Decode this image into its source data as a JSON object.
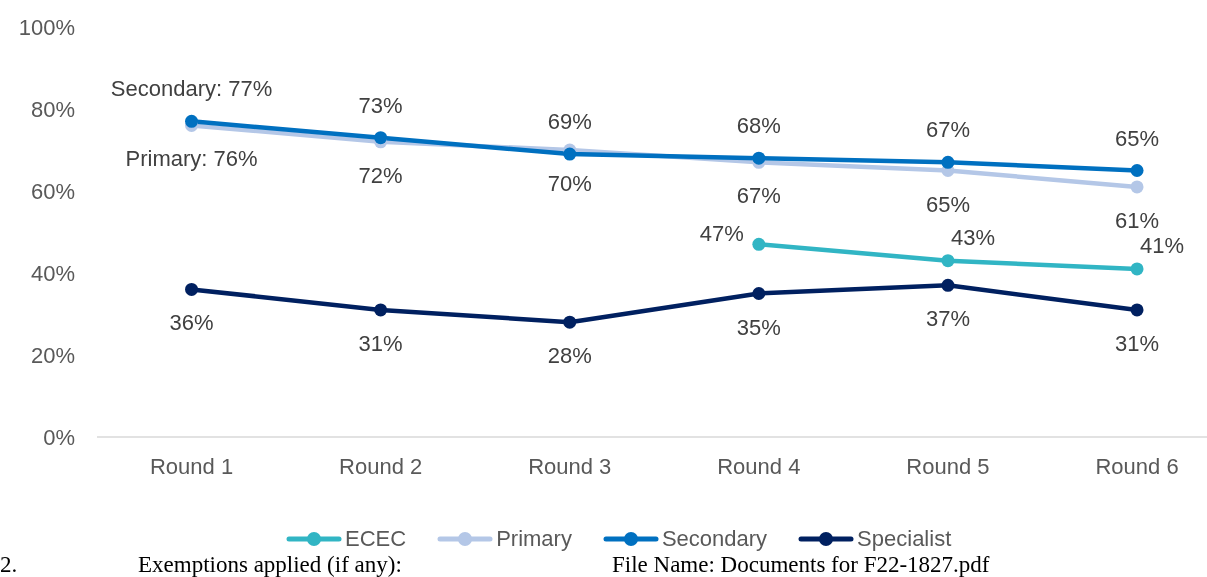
{
  "chart_data": {
    "type": "line",
    "categories": [
      "Round 1",
      "Round 2",
      "Round 3",
      "Round 4",
      "Round 5",
      "Round 6"
    ],
    "series": [
      {
        "name": "ECEC",
        "color": "#31b5c4",
        "values": [
          null,
          null,
          null,
          47,
          43,
          41
        ],
        "value_labels": [
          null,
          null,
          null,
          "47%",
          "43%",
          "41%"
        ]
      },
      {
        "name": "Primary",
        "color": "#b4c7e7",
        "values": [
          76,
          72,
          70,
          67,
          65,
          61
        ],
        "value_labels": [
          "Primary: 76%",
          "72%",
          "70%",
          "67%",
          "65%",
          "61%"
        ]
      },
      {
        "name": "Secondary",
        "color": "#0070c0",
        "values": [
          77,
          73,
          69,
          68,
          67,
          65
        ],
        "value_labels": [
          "Secondary: 77%",
          "73%",
          "69%",
          "68%",
          "67%",
          "65%"
        ]
      },
      {
        "name": "Specialist",
        "color": "#002060",
        "values": [
          36,
          31,
          28,
          35,
          37,
          31
        ],
        "value_labels": [
          "36%",
          "31%",
          "28%",
          "35%",
          "37%",
          "31%"
        ]
      }
    ],
    "ylim": [
      0,
      100
    ],
    "yticks": [
      {
        "value": 0,
        "label": "0%"
      },
      {
        "value": 20,
        "label": "20%"
      },
      {
        "value": 40,
        "label": "40%"
      },
      {
        "value": 60,
        "label": "60%"
      },
      {
        "value": 80,
        "label": "80%"
      },
      {
        "value": 100,
        "label": "100%"
      }
    ],
    "legend": "bottom",
    "marker": "circle",
    "line_style": "solid",
    "annotations": [
      "2.",
      "Exemptions applied (if any):",
      "File Name: Documents for F22-1827.pdf"
    ]
  }
}
